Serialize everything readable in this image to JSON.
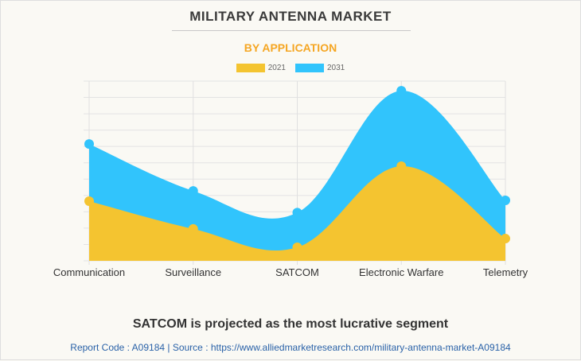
{
  "header": {
    "title": "MILITARY ANTENNA MARKET",
    "subtitle": "BY APPLICATION"
  },
  "footer": {
    "headline": "SATCOM is projected as the most lucrative segment",
    "source": "Report Code : A09184  |  Source : https://www.alliedmarketresearch.com/military-antenna-market-A09184"
  },
  "colors": {
    "series_2021": "#f4c430",
    "series_2031": "#31c4fc",
    "title": "#3a3a3a",
    "subtitle": "#f5a623",
    "source": "#2a62a8"
  },
  "chart_data": {
    "type": "area",
    "title": "MILITARY ANTENNA MARKET",
    "subtitle": "BY APPLICATION",
    "xlabel": "",
    "ylabel": "",
    "categories": [
      "Communication",
      "Surveillance",
      "SATCOM",
      "Electronic Warfare",
      "Telemetry"
    ],
    "series": [
      {
        "name": "2021",
        "color": "#f4c430",
        "values": [
          3.65,
          1.95,
          0.83,
          5.79,
          1.36
        ]
      },
      {
        "name": "2031",
        "color": "#31c4fc",
        "values": [
          7.15,
          4.28,
          2.95,
          10.41,
          3.7
        ]
      }
    ],
    "ylim": [
      0,
      11
    ],
    "y_gridlines": 11,
    "grid": true,
    "y_tick_labels_shown": false,
    "smooth": true,
    "stacked": false,
    "legend": "top-center"
  }
}
